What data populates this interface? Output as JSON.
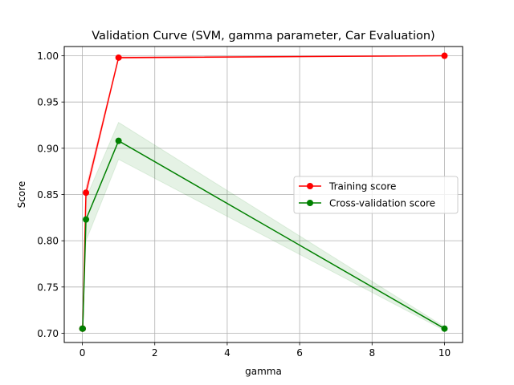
{
  "chart_data": {
    "type": "line",
    "title": "Validation Curve (SVM, gamma parameter, Car Evaluation)",
    "xlabel": "gamma",
    "ylabel": "Score",
    "xlim": [
      -0.5,
      10.5
    ],
    "ylim": [
      0.69,
      1.01
    ],
    "xticks": [
      0,
      2,
      4,
      6,
      8,
      10
    ],
    "yticks": [
      0.7,
      0.75,
      0.8,
      0.85,
      0.9,
      0.95,
      1.0
    ],
    "grid": true,
    "legend_position": "center-right",
    "x": [
      0.001,
      0.01,
      0.1,
      1,
      10
    ],
    "series": [
      {
        "name": "Training score",
        "color": "#ff0000",
        "values": [
          0.705,
          0.705,
          0.852,
          0.998,
          1.0
        ],
        "lower": [
          0.705,
          0.705,
          0.846,
          0.997,
          1.0
        ],
        "upper": [
          0.705,
          0.705,
          0.858,
          0.999,
          1.0
        ]
      },
      {
        "name": "Cross-validation score",
        "color": "#008000",
        "values": [
          0.705,
          0.705,
          0.823,
          0.908,
          0.705
        ],
        "lower": [
          0.705,
          0.705,
          0.8,
          0.888,
          0.703
        ],
        "upper": [
          0.705,
          0.705,
          0.846,
          0.928,
          0.707
        ]
      }
    ]
  }
}
